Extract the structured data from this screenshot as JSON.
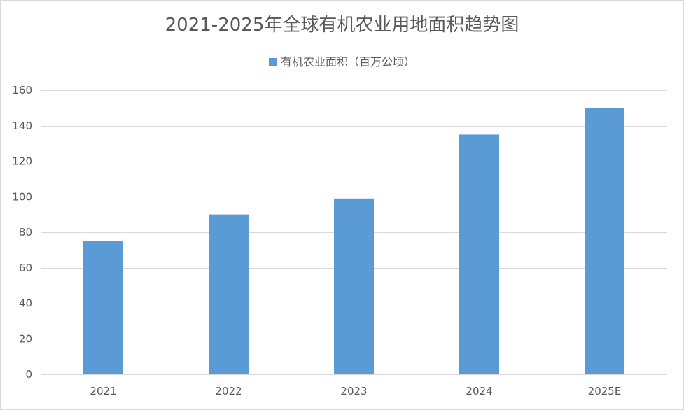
{
  "colors": {
    "bar": "#5b9bd5",
    "grid": "#d9d9d9",
    "text": "#595959"
  },
  "chart_data": {
    "type": "bar",
    "title": "2021-2025年全球有机农业用地面积趋势图",
    "xlabel": "",
    "ylabel": "",
    "legend_position": "top",
    "grid": true,
    "categories": [
      "2021",
      "2022",
      "2023",
      "2024",
      "2025E"
    ],
    "series": [
      {
        "name": "有机农业面积（百万公顷）",
        "values": [
          75,
          90,
          99,
          135,
          150
        ]
      }
    ],
    "ylim": [
      0,
      160
    ],
    "yticks": [
      0,
      20,
      40,
      60,
      80,
      100,
      120,
      140,
      160
    ]
  }
}
